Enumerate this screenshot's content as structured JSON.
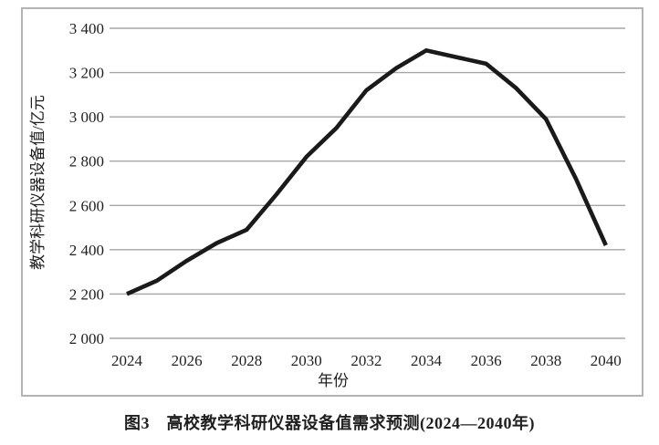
{
  "figure": {
    "caption": "图3　高校教学科研仪器设备值需求预测(2024—2040年)"
  },
  "chart_data": {
    "type": "line",
    "title": "",
    "xlabel": "年份",
    "ylabel": "教学科研仪器设备值/亿元",
    "x": [
      2024,
      2025,
      2026,
      2027,
      2028,
      2029,
      2030,
      2031,
      2032,
      2033,
      2034,
      2035,
      2036,
      2037,
      2038,
      2039,
      2040
    ],
    "series": [
      {
        "name": "高校教学科研仪器设备值需求预测",
        "values": [
          2200,
          2260,
          2350,
          2430,
          2490,
          2650,
          2820,
          2950,
          3120,
          3220,
          3300,
          3270,
          3240,
          3130,
          2990,
          2720,
          2420
        ]
      }
    ],
    "xticks": [
      "2024",
      "2026",
      "2028",
      "2030",
      "2032",
      "2034",
      "2036",
      "2038",
      "2040"
    ],
    "yticks": [
      "2 000",
      "2 200",
      "2 400",
      "2 600",
      "2 800",
      "3 000",
      "3 200",
      "3 400"
    ],
    "xlim": [
      2024,
      2040
    ],
    "ylim": [
      2000,
      3400
    ],
    "grid": "horizontal-only",
    "legend": "none",
    "line_color": "#1a1a1a",
    "grid_color": "#a6a6a6",
    "border_color": "#b3b3b3"
  }
}
